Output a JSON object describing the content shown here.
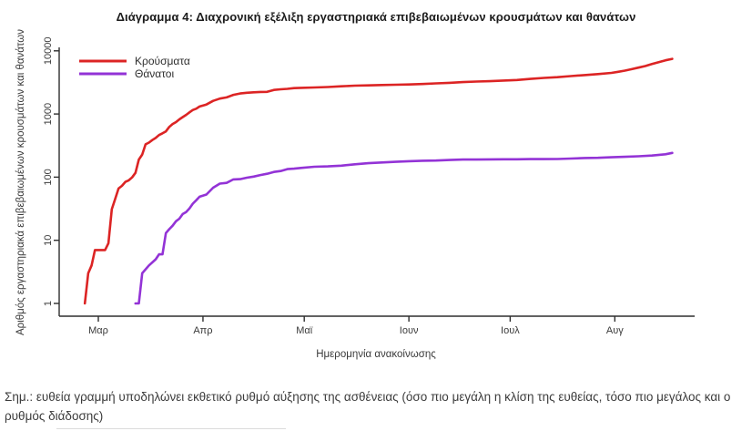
{
  "figure": {
    "note": "Σημ.: ευθεία γραμμή υποδηλώνει εκθετικό ρυθμό αύξησης της ασθένειας (όσο πιο μεγάλη η κλίση της ευθείας, τόσο πιο μεγάλος και ο ρυθμός διάδοσης)"
  },
  "colors": {
    "cases": "#dc2424",
    "deaths": "#9333d6",
    "axis": "#2e2e2e",
    "text": "#3a3a3a"
  },
  "chart_data": {
    "type": "line",
    "title": "Διάγραμμα 4: Διαχρονική εξέλιξη εργαστηριακά επιβεβαιωμένων κρουσμάτων και θανάτων",
    "xlabel": "Ημερομηνία ανακοίνωσης",
    "ylabel": "Αριθμός εργαστηριακά επιβεβαιωμένων κρουσμάτων και θανάτων",
    "y_scale": "log",
    "ylim": [
      1,
      10000
    ],
    "y_ticks": [
      1,
      10,
      100,
      1000,
      10000
    ],
    "x_ticks": [
      {
        "label": "Μαρ",
        "date": "2020-03-01"
      },
      {
        "label": "Απρ",
        "date": "2020-04-01"
      },
      {
        "label": "Μαϊ",
        "date": "2020-05-01"
      },
      {
        "label": "Ιουν",
        "date": "2020-06-01"
      },
      {
        "label": "Ιουλ",
        "date": "2020-07-01"
      },
      {
        "label": "Αυγ",
        "date": "2020-08-01"
      }
    ],
    "grid": false,
    "legend_position": "top-left",
    "series": [
      {
        "name": "Κρούσματα",
        "key": "cases",
        "color": "#dc2424",
        "points": [
          [
            "2020-02-26",
            1
          ],
          [
            "2020-02-27",
            3
          ],
          [
            "2020-02-28",
            4
          ],
          [
            "2020-02-29",
            7
          ],
          [
            "2020-03-03",
            7
          ],
          [
            "2020-03-04",
            9
          ],
          [
            "2020-03-05",
            31
          ],
          [
            "2020-03-06",
            45
          ],
          [
            "2020-03-07",
            66
          ],
          [
            "2020-03-08",
            73
          ],
          [
            "2020-03-09",
            84
          ],
          [
            "2020-03-10",
            89
          ],
          [
            "2020-03-11",
            99
          ],
          [
            "2020-03-12",
            117
          ],
          [
            "2020-03-13",
            190
          ],
          [
            "2020-03-14",
            228
          ],
          [
            "2020-03-15",
            331
          ],
          [
            "2020-03-16",
            352
          ],
          [
            "2020-03-17",
            387
          ],
          [
            "2020-03-18",
            418
          ],
          [
            "2020-03-19",
            464
          ],
          [
            "2020-03-20",
            495
          ],
          [
            "2020-03-21",
            530
          ],
          [
            "2020-03-22",
            624
          ],
          [
            "2020-03-23",
            695
          ],
          [
            "2020-03-24",
            743
          ],
          [
            "2020-03-25",
            821
          ],
          [
            "2020-03-26",
            892
          ],
          [
            "2020-03-27",
            966
          ],
          [
            "2020-03-28",
            1061
          ],
          [
            "2020-03-29",
            1156
          ],
          [
            "2020-03-30",
            1212
          ],
          [
            "2020-03-31",
            1314
          ],
          [
            "2020-04-02",
            1415
          ],
          [
            "2020-04-04",
            1613
          ],
          [
            "2020-04-06",
            1755
          ],
          [
            "2020-04-08",
            1832
          ],
          [
            "2020-04-10",
            2011
          ],
          [
            "2020-04-12",
            2114
          ],
          [
            "2020-04-14",
            2170
          ],
          [
            "2020-04-16",
            2207
          ],
          [
            "2020-04-18",
            2235
          ],
          [
            "2020-04-20",
            2245
          ],
          [
            "2020-04-22",
            2408
          ],
          [
            "2020-04-24",
            2463
          ],
          [
            "2020-04-26",
            2506
          ],
          [
            "2020-04-28",
            2566
          ],
          [
            "2020-04-30",
            2591
          ],
          [
            "2020-05-04",
            2632
          ],
          [
            "2020-05-08",
            2678
          ],
          [
            "2020-05-12",
            2744
          ],
          [
            "2020-05-16",
            2810
          ],
          [
            "2020-05-20",
            2840
          ],
          [
            "2020-05-24",
            2876
          ],
          [
            "2020-05-28",
            2906
          ],
          [
            "2020-06-01",
            2937
          ],
          [
            "2020-06-05",
            2980
          ],
          [
            "2020-06-09",
            3049
          ],
          [
            "2020-06-13",
            3112
          ],
          [
            "2020-06-17",
            3203
          ],
          [
            "2020-06-21",
            3266
          ],
          [
            "2020-06-25",
            3310
          ],
          [
            "2020-06-29",
            3390
          ],
          [
            "2020-07-03",
            3459
          ],
          [
            "2020-07-07",
            3589
          ],
          [
            "2020-07-11",
            3732
          ],
          [
            "2020-07-15",
            3826
          ],
          [
            "2020-07-19",
            3983
          ],
          [
            "2020-07-23",
            4135
          ],
          [
            "2020-07-27",
            4279
          ],
          [
            "2020-07-31",
            4477
          ],
          [
            "2020-08-02",
            4662
          ],
          [
            "2020-08-04",
            4855
          ],
          [
            "2020-08-06",
            5123
          ],
          [
            "2020-08-08",
            5421
          ],
          [
            "2020-08-10",
            5749
          ],
          [
            "2020-08-12",
            6177
          ],
          [
            "2020-08-14",
            6632
          ],
          [
            "2020-08-16",
            7075
          ],
          [
            "2020-08-18",
            7472
          ]
        ]
      },
      {
        "name": "Θάνατοι",
        "key": "deaths",
        "color": "#9333d6",
        "points": [
          [
            "2020-03-12",
            1
          ],
          [
            "2020-03-13",
            1
          ],
          [
            "2020-03-14",
            3
          ],
          [
            "2020-03-16",
            4
          ],
          [
            "2020-03-18",
            5
          ],
          [
            "2020-03-19",
            6
          ],
          [
            "2020-03-20",
            6
          ],
          [
            "2020-03-21",
            13
          ],
          [
            "2020-03-22",
            15
          ],
          [
            "2020-03-23",
            17
          ],
          [
            "2020-03-24",
            20
          ],
          [
            "2020-03-25",
            22
          ],
          [
            "2020-03-26",
            26
          ],
          [
            "2020-03-27",
            28
          ],
          [
            "2020-03-28",
            32
          ],
          [
            "2020-03-29",
            38
          ],
          [
            "2020-03-30",
            43
          ],
          [
            "2020-03-31",
            49
          ],
          [
            "2020-04-02",
            53
          ],
          [
            "2020-04-04",
            68
          ],
          [
            "2020-04-06",
            79
          ],
          [
            "2020-04-08",
            81
          ],
          [
            "2020-04-10",
            92
          ],
          [
            "2020-04-12",
            93
          ],
          [
            "2020-04-14",
            98
          ],
          [
            "2020-04-16",
            102
          ],
          [
            "2020-04-18",
            108
          ],
          [
            "2020-04-20",
            113
          ],
          [
            "2020-04-22",
            121
          ],
          [
            "2020-04-24",
            125
          ],
          [
            "2020-04-26",
            134
          ],
          [
            "2020-04-28",
            136
          ],
          [
            "2020-04-30",
            140
          ],
          [
            "2020-05-04",
            146
          ],
          [
            "2020-05-08",
            148
          ],
          [
            "2020-05-12",
            152
          ],
          [
            "2020-05-16",
            160
          ],
          [
            "2020-05-20",
            166
          ],
          [
            "2020-05-24",
            171
          ],
          [
            "2020-05-28",
            175
          ],
          [
            "2020-06-01",
            179
          ],
          [
            "2020-06-05",
            182
          ],
          [
            "2020-06-09",
            183
          ],
          [
            "2020-06-13",
            187
          ],
          [
            "2020-06-17",
            190
          ],
          [
            "2020-06-21",
            190
          ],
          [
            "2020-06-25",
            191
          ],
          [
            "2020-06-29",
            192
          ],
          [
            "2020-07-03",
            192
          ],
          [
            "2020-07-07",
            193
          ],
          [
            "2020-07-11",
            193
          ],
          [
            "2020-07-15",
            194
          ],
          [
            "2020-07-19",
            197
          ],
          [
            "2020-07-23",
            201
          ],
          [
            "2020-07-27",
            202
          ],
          [
            "2020-07-31",
            206
          ],
          [
            "2020-08-04",
            210
          ],
          [
            "2020-08-08",
            214
          ],
          [
            "2020-08-12",
            220
          ],
          [
            "2020-08-16",
            230
          ],
          [
            "2020-08-18",
            242
          ]
        ]
      }
    ]
  }
}
